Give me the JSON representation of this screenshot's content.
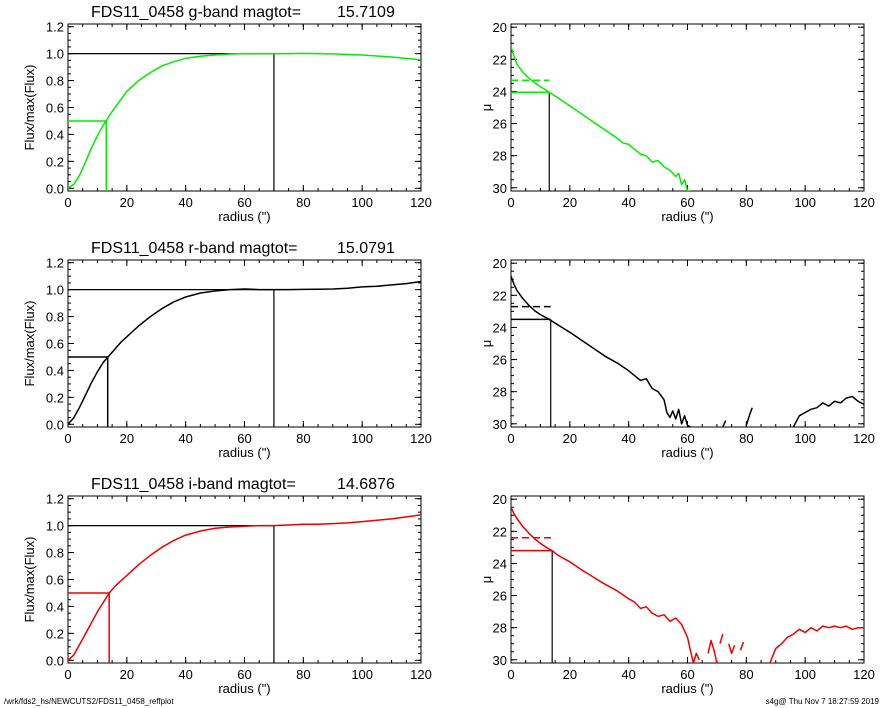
{
  "footer": {
    "path": "/wrk/fds2_hs/NEWCUTS2/FDS11_0458_reffplot",
    "stamp": "s4g@  Thu Nov  7 18:27:59 2019"
  },
  "chart_data": [
    {
      "type": "line",
      "panel": "g-band growth curve",
      "title_label": "FDS11_0458 g-band  magtot=",
      "title_value": "15.7109",
      "xlabel": "radius (\")",
      "ylabel": "Flux/max(Flux)",
      "xlim": [
        0,
        120
      ],
      "ylim": [
        -0.02,
        1.22
      ],
      "xticks": [
        0,
        20,
        40,
        60,
        80,
        100,
        120
      ],
      "yticks": [
        0.0,
        0.2,
        0.4,
        0.6,
        0.8,
        1.0,
        1.2
      ],
      "color": "#00ee00",
      "series": [
        {
          "x": [
            0,
            2,
            4,
            6,
            8,
            10,
            12,
            13,
            14,
            16,
            18,
            20,
            24,
            28,
            32,
            36,
            40,
            45,
            50,
            55,
            60,
            65,
            70,
            75,
            80,
            90,
            100,
            110,
            120
          ],
          "values": [
            0.0,
            0.03,
            0.1,
            0.2,
            0.3,
            0.39,
            0.47,
            0.5,
            0.54,
            0.6,
            0.66,
            0.72,
            0.8,
            0.86,
            0.91,
            0.94,
            0.965,
            0.98,
            0.99,
            0.997,
            1.0,
            1.0,
            1.0,
            1.0,
            1.002,
            0.998,
            0.99,
            0.975,
            0.955
          ]
        }
      ],
      "guides": {
        "half_light_radius": 13,
        "half_level": 0.5,
        "total_radius": 70,
        "total_level": 1.0
      }
    },
    {
      "type": "line",
      "panel": "g-band surface brightness profile",
      "xlabel": "radius (\")",
      "ylabel": "μ",
      "xlim": [
        0,
        120
      ],
      "ylim": [
        30.2,
        19.8
      ],
      "xticks": [
        0,
        20,
        40,
        60,
        80,
        100,
        120
      ],
      "yticks": [
        20,
        22,
        24,
        26,
        28,
        30
      ],
      "color": "#00ee00",
      "series": [
        {
          "x": [
            0,
            1,
            2,
            4,
            6,
            8,
            10,
            13,
            16,
            20,
            24,
            28,
            32,
            36,
            38,
            40,
            42,
            44,
            46,
            48,
            50,
            52,
            54,
            56,
            57,
            58,
            59,
            60,
            61
          ],
          "values": [
            21.2,
            21.8,
            22.3,
            22.8,
            23.15,
            23.45,
            23.7,
            24.05,
            24.4,
            24.9,
            25.4,
            25.9,
            26.4,
            26.9,
            27.2,
            27.3,
            27.6,
            27.9,
            28.0,
            28.4,
            28.3,
            28.7,
            28.9,
            29.3,
            29.1,
            29.8,
            29.5,
            30.2,
            30.2
          ]
        }
      ],
      "guides": {
        "half_light_radius": 13,
        "mu_eff": 24.05,
        "mu_mean_eff": 23.3
      }
    },
    {
      "type": "line",
      "panel": "r-band growth curve",
      "title_label": "FDS11_0458 r-band  magtot=",
      "title_value": "15.0791",
      "xlabel": "radius (\")",
      "ylabel": "Flux/max(Flux)",
      "xlim": [
        0,
        120
      ],
      "ylim": [
        -0.02,
        1.22
      ],
      "xticks": [
        0,
        20,
        40,
        60,
        80,
        100,
        120
      ],
      "yticks": [
        0.0,
        0.2,
        0.4,
        0.6,
        0.8,
        1.0,
        1.2
      ],
      "color": "#000000",
      "series": [
        {
          "x": [
            0,
            2,
            4,
            6,
            8,
            10,
            12,
            14,
            16,
            18,
            20,
            24,
            28,
            32,
            36,
            40,
            45,
            50,
            55,
            60,
            65,
            70,
            75,
            80,
            85,
            90,
            95,
            100,
            105,
            110,
            115,
            120
          ],
          "values": [
            0.0,
            0.05,
            0.13,
            0.22,
            0.31,
            0.39,
            0.46,
            0.51,
            0.56,
            0.61,
            0.65,
            0.73,
            0.8,
            0.86,
            0.91,
            0.945,
            0.975,
            0.99,
            1.0,
            1.005,
            1.0,
            1.0,
            1.0,
            1.002,
            1.003,
            1.005,
            1.01,
            1.02,
            1.025,
            1.035,
            1.045,
            1.06
          ]
        }
      ],
      "guides": {
        "half_light_radius": 13.5,
        "half_level": 0.5,
        "total_radius": 70,
        "total_level": 1.0
      }
    },
    {
      "type": "line",
      "panel": "r-band surface brightness profile",
      "xlabel": "radius (\")",
      "ylabel": "μ",
      "xlim": [
        0,
        120
      ],
      "ylim": [
        30.2,
        19.8
      ],
      "xticks": [
        0,
        20,
        40,
        60,
        80,
        100,
        120
      ],
      "yticks": [
        20,
        22,
        24,
        26,
        28,
        30
      ],
      "color": "#000000",
      "series": [
        {
          "x": [
            0,
            1,
            2,
            4,
            6,
            8,
            10,
            13,
            16,
            20,
            24,
            28,
            32,
            36,
            40,
            42,
            44,
            46,
            48,
            50,
            52,
            53,
            54,
            55,
            56,
            57,
            58,
            59,
            60,
            61
          ],
          "values": [
            20.8,
            21.3,
            21.7,
            22.2,
            22.6,
            22.95,
            23.2,
            23.5,
            23.85,
            24.3,
            24.8,
            25.3,
            25.8,
            26.2,
            26.7,
            27.0,
            27.3,
            27.2,
            27.8,
            28.0,
            28.5,
            29.3,
            29.6,
            29.2,
            29.7,
            29.1,
            30.0,
            29.5,
            30.1,
            30.2
          ]
        },
        {
          "x": [
            72,
            73
          ],
          "values": [
            30.2,
            29.8
          ]
        },
        {
          "x": [
            80,
            81,
            82
          ],
          "values": [
            30.1,
            29.5,
            29.0
          ]
        },
        {
          "x": [
            96,
            98,
            100,
            102,
            104,
            106,
            108,
            110,
            112,
            114,
            116,
            118,
            120
          ],
          "values": [
            30.2,
            29.5,
            29.3,
            29.1,
            29.0,
            28.7,
            28.9,
            28.6,
            28.7,
            28.4,
            28.3,
            28.6,
            28.8
          ]
        }
      ],
      "guides": {
        "half_light_radius": 13.5,
        "mu_eff": 23.5,
        "mu_mean_eff": 22.7
      }
    },
    {
      "type": "line",
      "panel": "i-band growth curve",
      "title_label": "FDS11_0458 i-band  magtot=",
      "title_value": "14.6876",
      "xlabel": "radius (\")",
      "ylabel": "Flux/max(Flux)",
      "xlim": [
        0,
        120
      ],
      "ylim": [
        -0.02,
        1.22
      ],
      "xticks": [
        0,
        20,
        40,
        60,
        80,
        100,
        120
      ],
      "yticks": [
        0.0,
        0.2,
        0.4,
        0.6,
        0.8,
        1.0,
        1.2
      ],
      "color": "#ee0000",
      "series": [
        {
          "x": [
            0,
            2,
            4,
            6,
            8,
            10,
            12,
            14,
            16,
            18,
            20,
            24,
            28,
            32,
            36,
            40,
            45,
            50,
            55,
            60,
            65,
            70,
            75,
            80,
            85,
            90,
            95,
            100,
            105,
            110,
            115,
            120
          ],
          "values": [
            0.0,
            0.04,
            0.12,
            0.2,
            0.28,
            0.36,
            0.43,
            0.5,
            0.55,
            0.59,
            0.63,
            0.71,
            0.78,
            0.84,
            0.89,
            0.93,
            0.96,
            0.98,
            0.99,
            0.995,
            1.0,
            1.0,
            1.005,
            1.01,
            1.01,
            1.015,
            1.02,
            1.03,
            1.04,
            1.05,
            1.065,
            1.08
          ]
        }
      ],
      "guides": {
        "half_light_radius": 14,
        "half_level": 0.5,
        "total_radius": 70,
        "total_level": 1.0
      }
    },
    {
      "type": "line",
      "panel": "i-band surface brightness profile",
      "xlabel": "radius (\")",
      "ylabel": "μ",
      "xlim": [
        0,
        120
      ],
      "ylim": [
        30.2,
        19.8
      ],
      "xticks": [
        0,
        20,
        40,
        60,
        80,
        100,
        120
      ],
      "yticks": [
        20,
        22,
        24,
        26,
        28,
        30
      ],
      "color": "#ee0000",
      "series": [
        {
          "x": [
            0,
            1,
            2,
            4,
            6,
            8,
            10,
            12,
            14,
            16,
            20,
            24,
            28,
            32,
            36,
            40,
            42,
            44,
            46,
            48,
            50,
            52,
            54,
            56,
            58,
            60,
            61,
            62,
            63,
            64
          ],
          "values": [
            20.5,
            20.9,
            21.2,
            21.7,
            22.1,
            22.45,
            22.75,
            23.0,
            23.2,
            23.5,
            23.9,
            24.4,
            24.85,
            25.3,
            25.7,
            26.2,
            26.4,
            26.8,
            26.7,
            27.1,
            27.3,
            27.2,
            27.6,
            27.4,
            27.8,
            28.6,
            29.4,
            30.2,
            29.6,
            30.0
          ]
        },
        {
          "x": [
            67,
            68,
            69,
            70
          ],
          "values": [
            29.6,
            28.8,
            29.4,
            30.2
          ]
        },
        {
          "x": [
            71,
            72
          ],
          "values": [
            29.0,
            28.4
          ]
        },
        {
          "x": [
            74,
            75,
            76
          ],
          "values": [
            29.0,
            29.6,
            29.1
          ]
        },
        {
          "x": [
            78,
            79
          ],
          "values": [
            29.4,
            28.9
          ]
        },
        {
          "x": [
            88,
            90,
            92,
            94,
            96,
            98,
            100,
            102,
            104,
            106,
            108,
            110,
            112,
            114,
            116,
            118,
            120
          ],
          "values": [
            30.2,
            29.3,
            29.0,
            28.6,
            28.4,
            28.1,
            28.3,
            28.0,
            28.2,
            27.9,
            28.0,
            27.9,
            28.0,
            27.9,
            28.1,
            28.0,
            28.0
          ]
        }
      ],
      "guides": {
        "half_light_radius": 14,
        "mu_eff": 23.2,
        "mu_mean_eff": 22.4
      }
    }
  ]
}
